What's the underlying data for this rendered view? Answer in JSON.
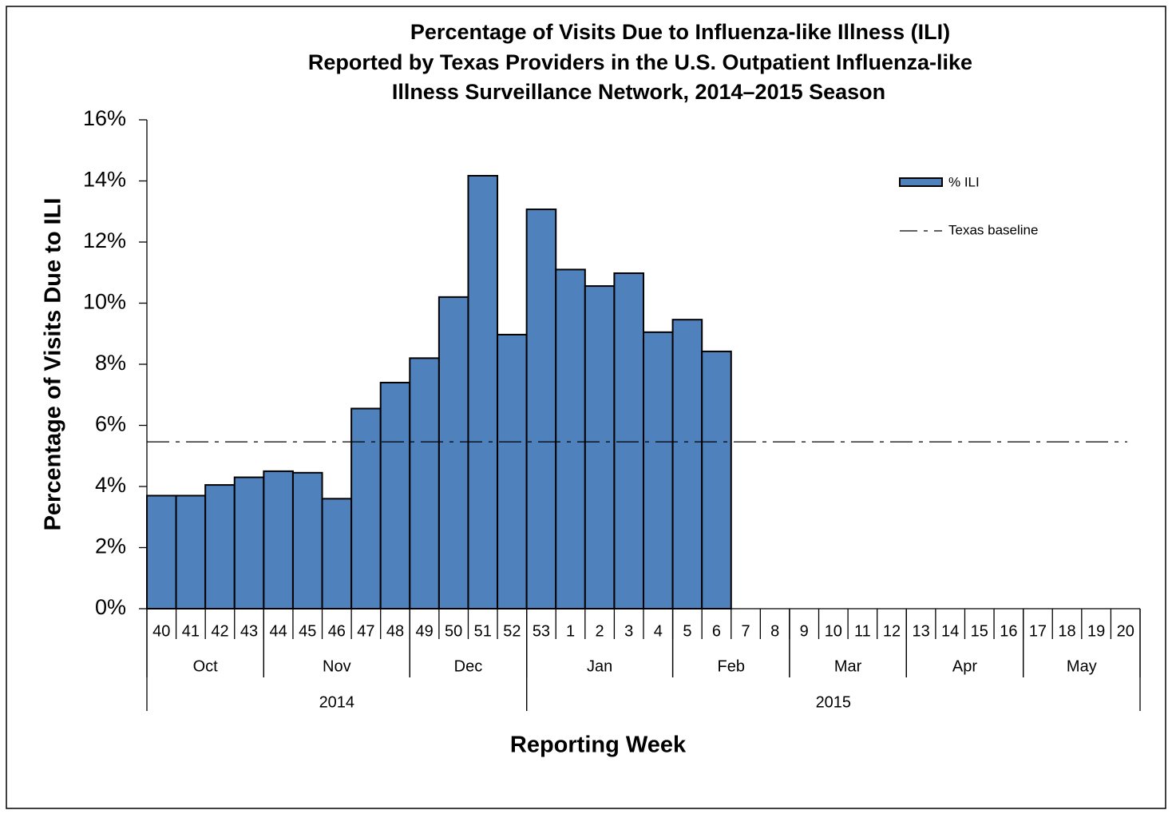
{
  "chart_data": {
    "type": "bar",
    "title": [
      "Percentage of Visits Due to Influenza-like Illness (ILI)",
      "Reported by Texas Providers in the U.S. Outpatient Influenza-like",
      "Illness Surveillance Network, 2014–2015 Season"
    ],
    "x_label": "Reporting Week",
    "y_label": "Percentage of Visits Due to ILI",
    "categories": [
      "40",
      "41",
      "42",
      "43",
      "44",
      "45",
      "46",
      "47",
      "48",
      "49",
      "50",
      "51",
      "52",
      "53",
      "1",
      "2",
      "3",
      "4",
      "5",
      "6",
      "7",
      "8",
      "9",
      "10",
      "11",
      "12",
      "13",
      "14",
      "15",
      "16",
      "17",
      "18",
      "19",
      "20"
    ],
    "months": [
      {
        "label": "Oct",
        "first": "40",
        "last": "43"
      },
      {
        "label": "Nov",
        "first": "44",
        "last": "48"
      },
      {
        "label": "Dec",
        "first": "49",
        "last": "52"
      },
      {
        "label": "Jan",
        "first": "53",
        "last": "4"
      },
      {
        "label": "Feb",
        "first": "5",
        "last": "8"
      },
      {
        "label": "Mar",
        "first": "9",
        "last": "12"
      },
      {
        "label": "Apr",
        "first": "13",
        "last": "16"
      },
      {
        "label": "May",
        "first": "17",
        "last": "20"
      }
    ],
    "years": [
      {
        "label": "2014",
        "first": "40",
        "last": "52"
      },
      {
        "label": "2015",
        "first": "53",
        "last": "20"
      }
    ],
    "series": [
      {
        "name": "% ILI",
        "color": "#4f81bd",
        "values": [
          3.7,
          3.7,
          4.05,
          4.3,
          4.5,
          4.45,
          3.6,
          6.55,
          7.4,
          8.2,
          10.2,
          14.17,
          8.97,
          13.07,
          11.1,
          10.56,
          10.98,
          9.05,
          9.46,
          8.42,
          null,
          null,
          null,
          null,
          null,
          null,
          null,
          null,
          null,
          null,
          null,
          null,
          null,
          null
        ]
      }
    ],
    "baseline": {
      "name": "Texas baseline",
      "value": 5.46,
      "color": "#000000"
    },
    "ylim": [
      0,
      16
    ],
    "yticks": [
      {
        "value": 0,
        "label": "0%"
      },
      {
        "value": 2,
        "label": "2%"
      },
      {
        "value": 4,
        "label": "4%"
      },
      {
        "value": 6,
        "label": "6%"
      },
      {
        "value": 8,
        "label": "8%"
      },
      {
        "value": 10,
        "label": "10%"
      },
      {
        "value": 12,
        "label": "12%"
      },
      {
        "value": 14,
        "label": "14%"
      },
      {
        "value": 16,
        "label": "16%"
      }
    ],
    "grid": false,
    "legend": "upper right"
  }
}
